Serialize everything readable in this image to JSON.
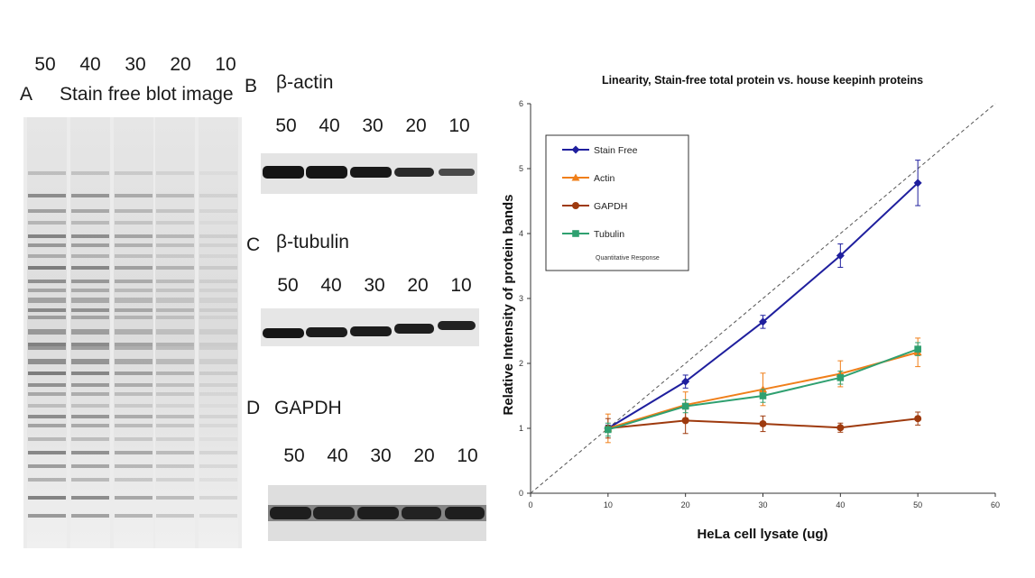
{
  "blot_panel_A": {
    "letter": "A",
    "title": "Stain free blot image",
    "lanes": [
      "50",
      "40",
      "30",
      "20",
      "10"
    ]
  },
  "blot_panel_B": {
    "letter": "B",
    "title": "β-actin",
    "lanes": [
      "50",
      "40",
      "30",
      "20",
      "10"
    ]
  },
  "blot_panel_C": {
    "letter": "C",
    "title": "β-tubulin",
    "lanes": [
      "50",
      "40",
      "30",
      "20",
      "10"
    ]
  },
  "blot_panel_D": {
    "letter": "D",
    "title": "GAPDH",
    "lanes": [
      "50",
      "40",
      "30",
      "20",
      "10"
    ]
  },
  "chart_data": {
    "type": "line",
    "title": "Linearity, Stain-free total protein  vs. house keepinh proteins",
    "xlabel": "HeLa cell lysate (ug)",
    "ylabel": "Relative Intensity of protein bands",
    "xlim": [
      0,
      60
    ],
    "ylim": [
      0,
      6
    ],
    "xticks": [
      0,
      10,
      20,
      30,
      40,
      50,
      60
    ],
    "yticks": [
      0,
      1,
      2,
      3,
      4,
      5,
      6
    ],
    "grid": false,
    "legend_position": "top-left",
    "legend_note": "Quantitative Response",
    "x": [
      10,
      20,
      30,
      40,
      50
    ],
    "reference_line": {
      "style": "dashed",
      "color": "#555555",
      "from": [
        0,
        0
      ],
      "to": [
        60,
        6
      ]
    },
    "series": [
      {
        "name": "Stain Free",
        "color": "#1f1f9e",
        "marker": "diamond",
        "values": [
          1.0,
          1.72,
          2.64,
          3.66,
          4.78
        ],
        "errors": [
          0.05,
          0.1,
          0.1,
          0.18,
          0.35
        ]
      },
      {
        "name": "Actin",
        "color": "#f07f1a",
        "marker": "triangle",
        "values": [
          1.0,
          1.36,
          1.6,
          1.84,
          2.17
        ],
        "errors": [
          0.22,
          0.2,
          0.25,
          0.2,
          0.22
        ]
      },
      {
        "name": "GAPDH",
        "color": "#9e3a0e",
        "marker": "circle",
        "values": [
          1.0,
          1.12,
          1.07,
          1.01,
          1.15
        ],
        "errors": [
          0.15,
          0.2,
          0.12,
          0.07,
          0.1
        ]
      },
      {
        "name": "Tubulin",
        "color": "#2fa070",
        "marker": "square",
        "values": [
          0.98,
          1.34,
          1.5,
          1.78,
          2.22
        ],
        "errors": [
          0.1,
          0.1,
          0.1,
          0.1,
          0.1
        ]
      }
    ]
  }
}
